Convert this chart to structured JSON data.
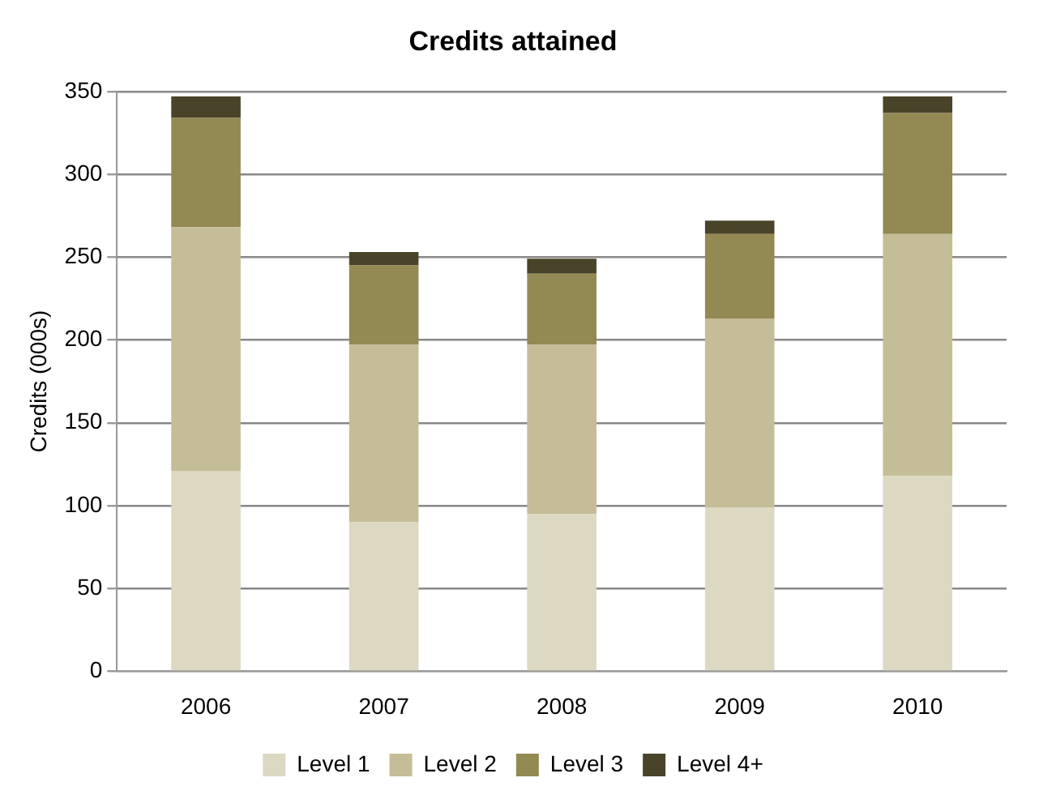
{
  "chart_data": {
    "type": "bar",
    "title": "Credits attained",
    "ylabel": "Credits (000s)",
    "categories": [
      "2006",
      "2007",
      "2008",
      "2009",
      "2010"
    ],
    "stacked": true,
    "series": [
      {
        "name": "Level 1",
        "color": "#ddd8c2",
        "values": [
          121,
          90,
          95,
          99,
          118
        ]
      },
      {
        "name": "Level 2",
        "color": "#c4bd97",
        "values": [
          147,
          107,
          102,
          114,
          146
        ]
      },
      {
        "name": "Level 3",
        "color": "#938953",
        "values": [
          66,
          48,
          43,
          51,
          73
        ]
      },
      {
        "name": "Level 4+",
        "color": "#494429",
        "values": [
          13,
          8,
          9,
          8,
          10
        ]
      }
    ],
    "ylim": [
      0,
      350
    ],
    "yticks": [
      0,
      50,
      100,
      150,
      200,
      250,
      300,
      350
    ],
    "grid": "y",
    "legend": "bottom"
  }
}
